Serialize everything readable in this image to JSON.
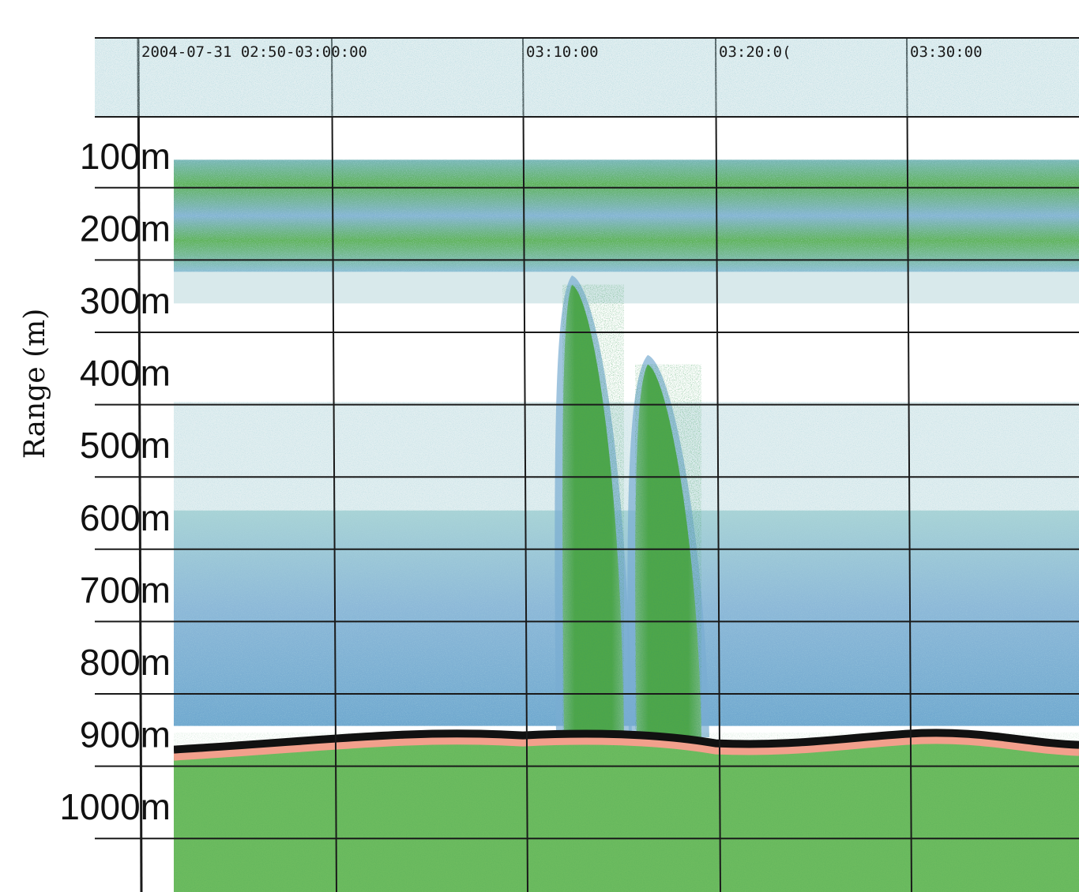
{
  "chart_data": {
    "type": "heatmap",
    "title": "",
    "xlabel": "",
    "ylabel": "Range (m)",
    "x_tick_labels": [
      "2004-07-31 02:50-03:00:00",
      "03:10:00",
      "03:20:0(",
      "03:30:00"
    ],
    "y_tick_labels": [
      "100m",
      "200m",
      "300m",
      "400m",
      "500m",
      "600m",
      "700m",
      "800m",
      "900m",
      "1000m"
    ],
    "y_ticks": [
      100,
      200,
      300,
      400,
      500,
      600,
      700,
      800,
      900,
      1000
    ],
    "ylim": [
      0,
      1050
    ],
    "y_inverted": true,
    "grid": true,
    "colors": {
      "background": "#ffffff",
      "noise": "#a9cfd3",
      "weak_return": "#8fc7cf",
      "medium_return": "#79acd2",
      "strong_return": "#5fb35a",
      "plume": "#4ea64a",
      "seabed_line": "#111111",
      "seabed_edge": "#f2a08c",
      "sub_bottom": "#6cbb5f",
      "grid": "#1a1a1a"
    },
    "features": [
      {
        "name": "scattering layer",
        "range_m": [
          105,
          260
        ]
      },
      {
        "name": "plume",
        "range_m": [
          265,
          895
        ]
      },
      {
        "name": "plume",
        "range_m": [
          375,
          895
        ]
      },
      {
        "name": "seabed",
        "range_m": [
          888,
          920
        ]
      }
    ]
  }
}
